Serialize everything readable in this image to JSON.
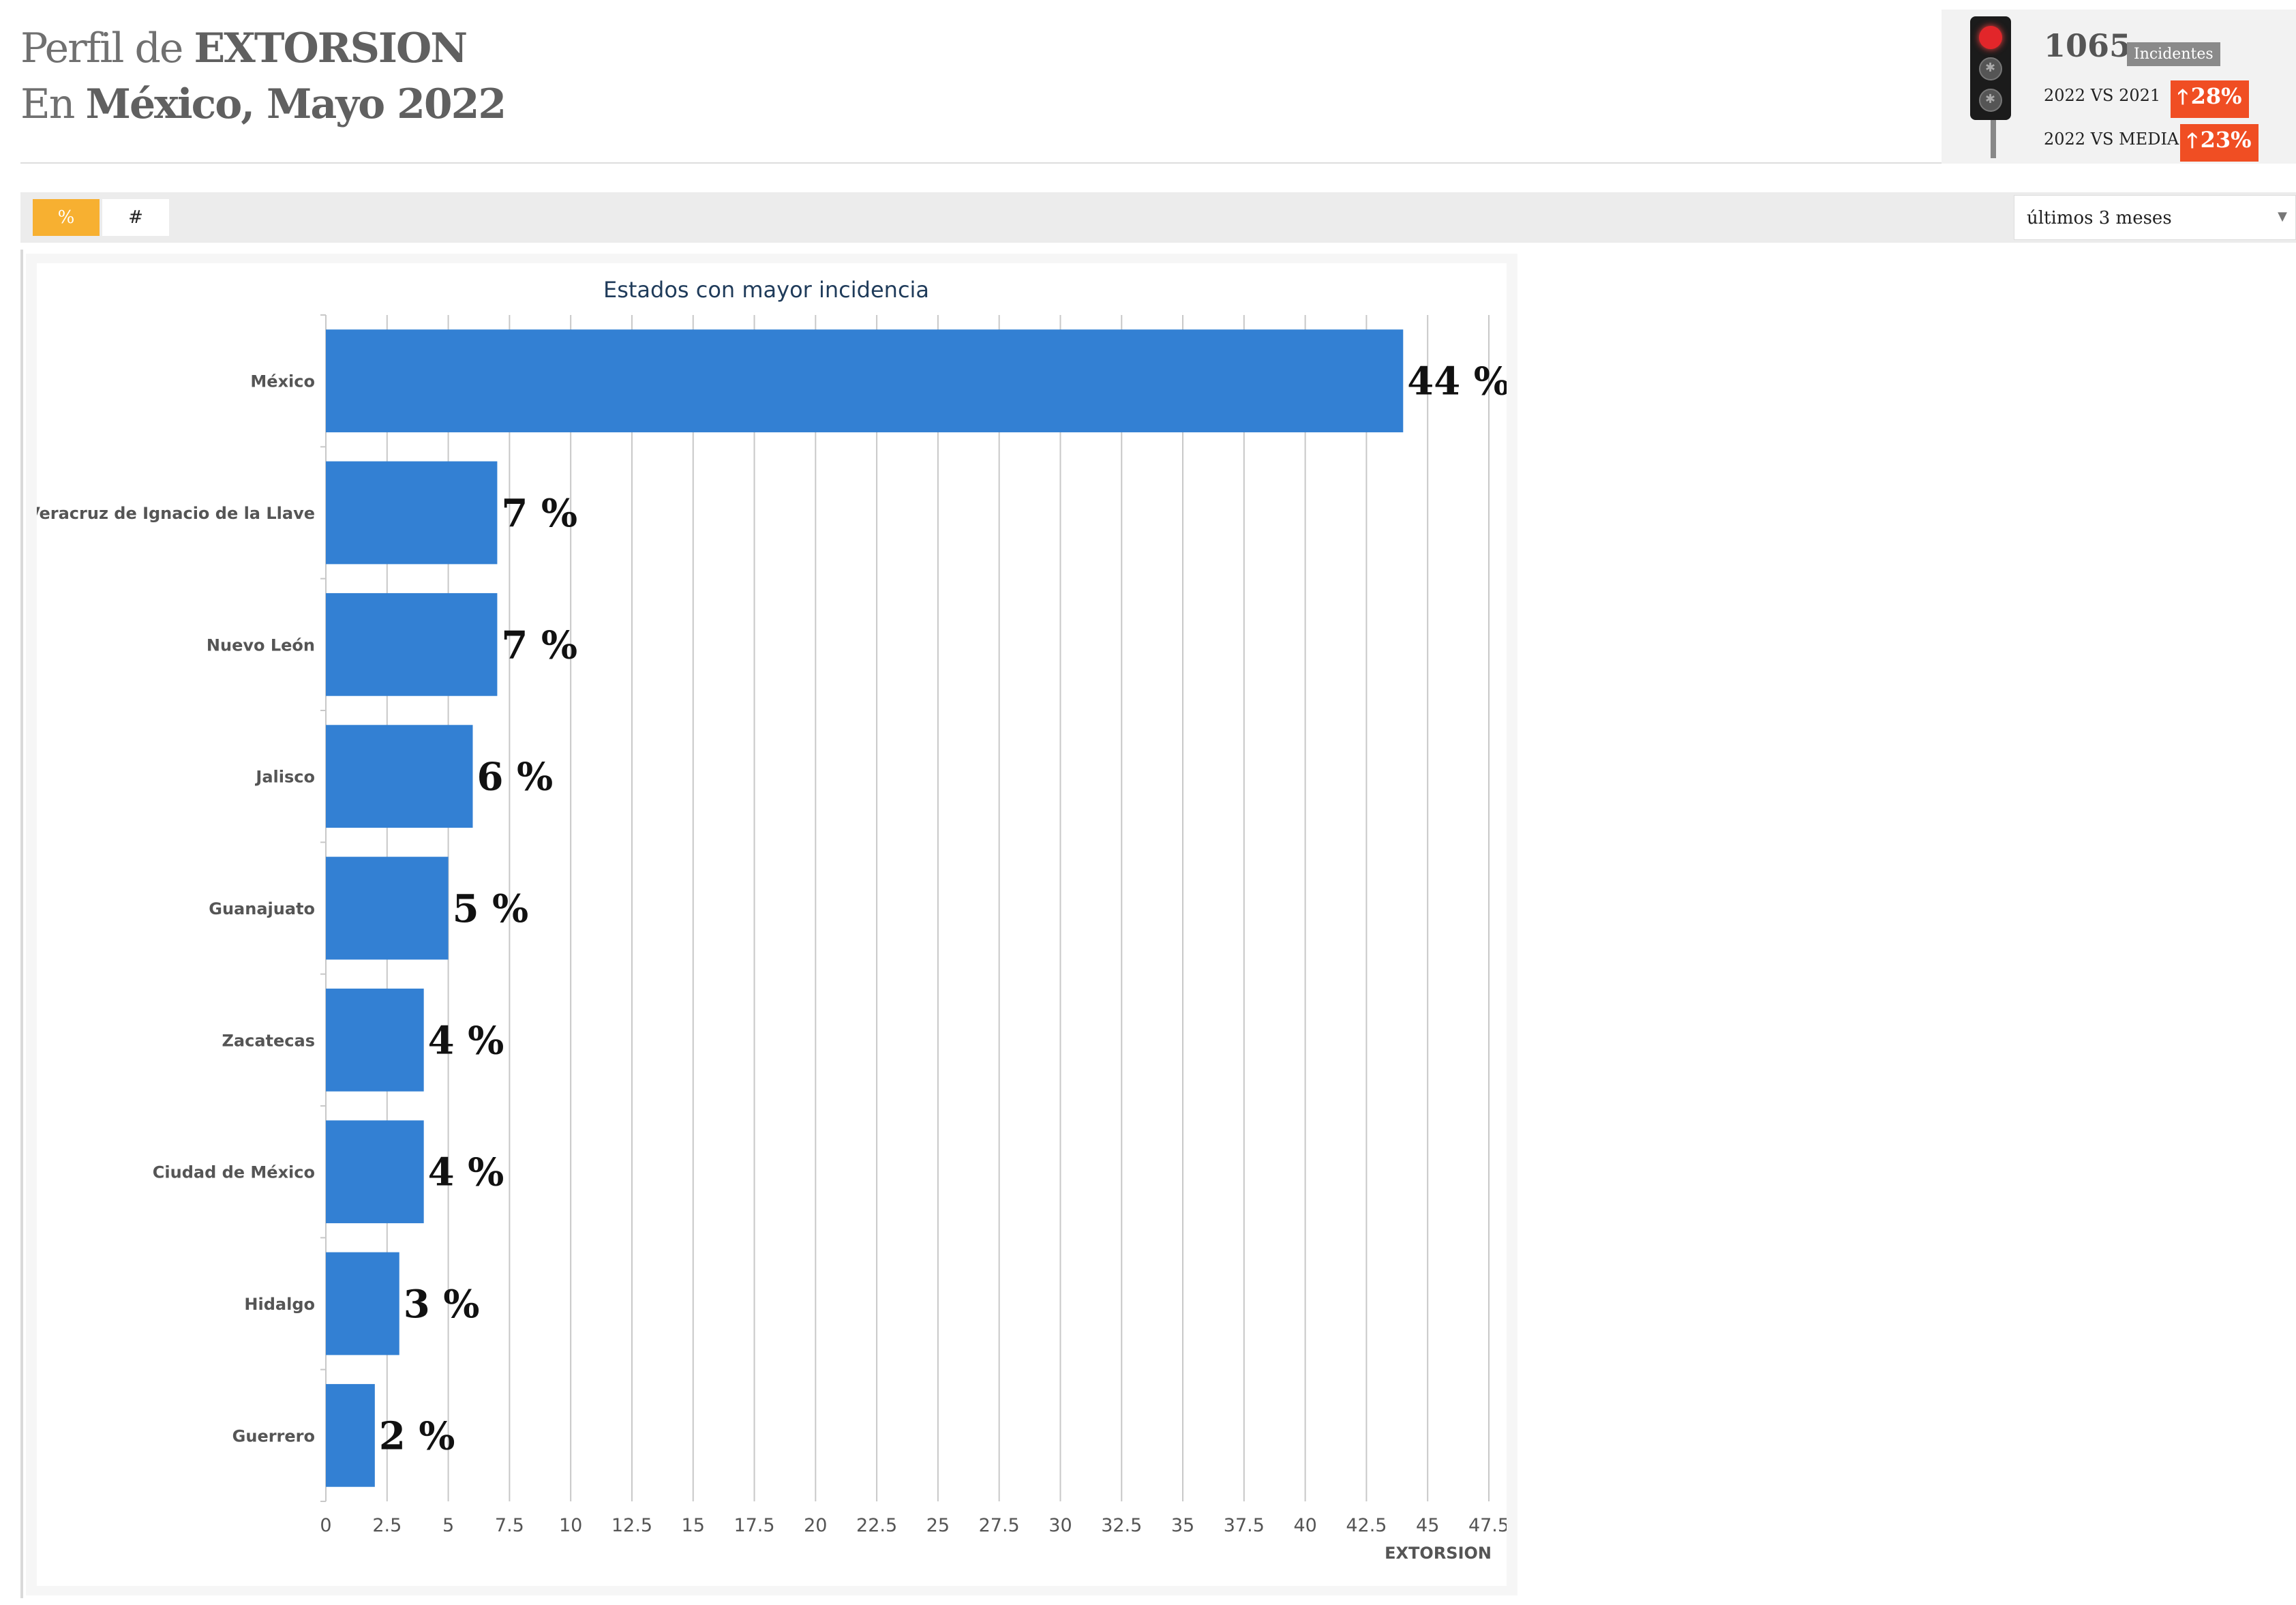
{
  "header": {
    "line1_prefix": "Perfil de",
    "line1_bold": "EXTORSION",
    "line2_prefix": "En",
    "line2_bold": "México, Mayo 2022"
  },
  "stats": {
    "count": "1065",
    "count_badge": "Incidentes",
    "cmp1_label": "2022 VS 2021",
    "cmp1_value": "28%",
    "cmp2_label": "2022 VS MEDIA",
    "cmp2_value": "23%",
    "arrow_icon": "arrow-up-icon",
    "badge_color": "#f04e23",
    "traffic_light": "red"
  },
  "toolbar": {
    "toggle_percent": "%",
    "toggle_count": "#",
    "active_toggle": "%",
    "active_color": "#f7b031",
    "period_select": "últimos 3 meses"
  },
  "chart_data": {
    "type": "bar",
    "orientation": "horizontal",
    "title": "Estados con mayor incidencia",
    "xlabel": "EXTORSION",
    "ylabel": "",
    "categories": [
      "México",
      "Veracruz de Ignacio de la Llave",
      "Nuevo León",
      "Jalisco",
      "Guanajuato",
      "Zacatecas",
      "Ciudad de México",
      "Hidalgo",
      "Guerrero"
    ],
    "values": [
      44,
      7,
      7,
      6,
      5,
      4,
      4,
      3,
      2
    ],
    "data_labels": [
      "44 %",
      "7 %",
      "7 %",
      "6 %",
      "5 %",
      "4 %",
      "4 %",
      "3 %",
      "2 %"
    ],
    "xlim": [
      0,
      47.5
    ],
    "xticks": [
      "0",
      "2.5",
      "5",
      "7.5",
      "10",
      "12.5",
      "15",
      "17.5",
      "20",
      "22.5",
      "25",
      "27.5",
      "30",
      "32.5",
      "35",
      "37.5",
      "40",
      "42.5",
      "45",
      "47.5"
    ],
    "bar_color": "#3380d3",
    "grid": true,
    "legend": "none"
  }
}
